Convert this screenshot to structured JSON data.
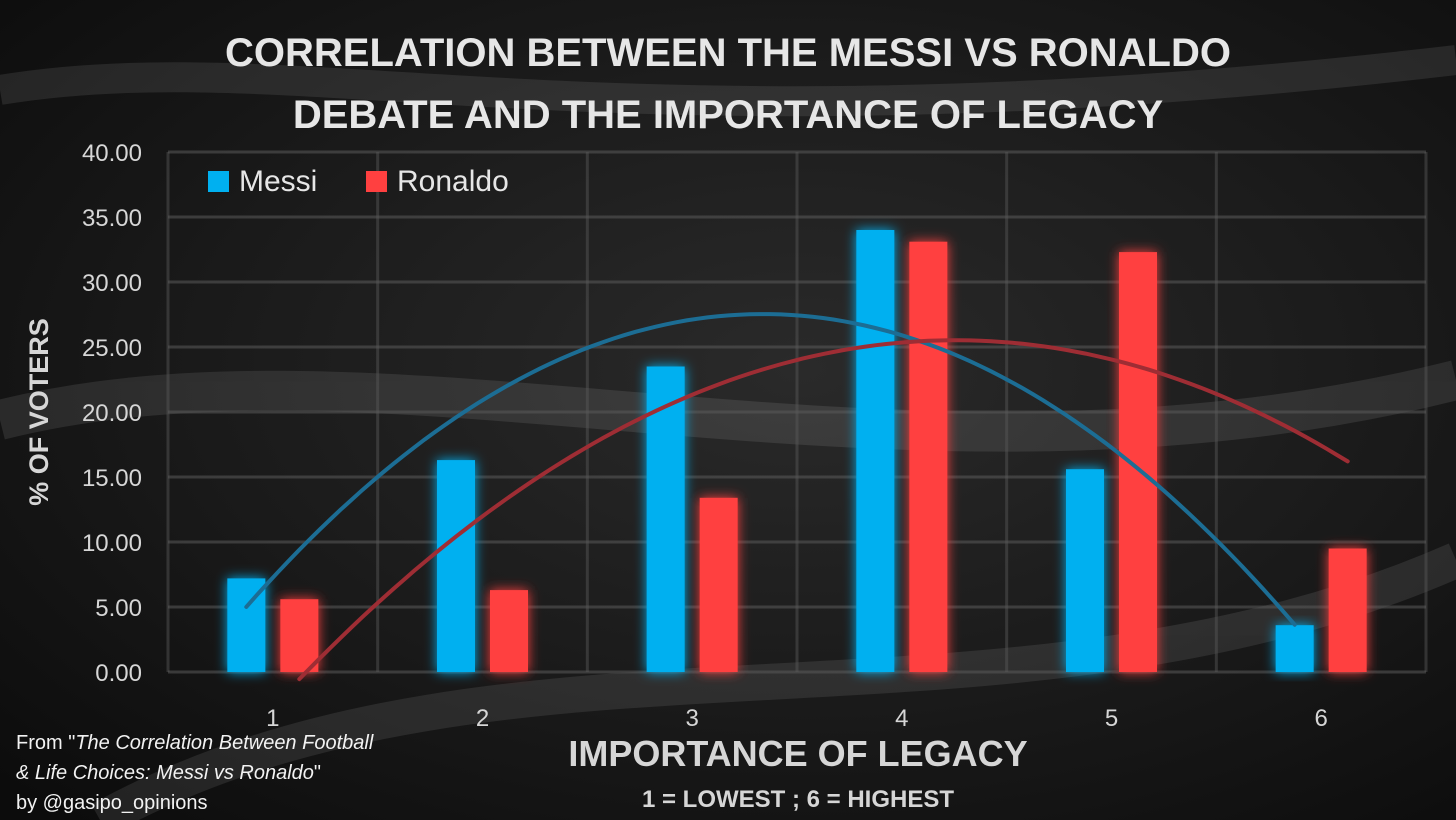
{
  "chart_data": {
    "type": "bar",
    "title_lines": [
      "CORRELATION BETWEEN THE MESSI VS RONALDO",
      "DEBATE AND THE IMPORTANCE OF LEGACY"
    ],
    "xlabel": "IMPORTANCE OF LEGACY",
    "xlabel_sub": "1 = LOWEST ; 6 = HIGHEST",
    "ylabel": "% OF VOTERS",
    "categories": [
      "1",
      "2",
      "3",
      "4",
      "5",
      "6"
    ],
    "ylim": [
      0,
      40
    ],
    "yticks": [
      "0.00",
      "5.00",
      "10.00",
      "15.00",
      "20.00",
      "25.00",
      "30.00",
      "35.00",
      "40.00"
    ],
    "grid": true,
    "legend_position": "top-left",
    "series": [
      {
        "name": "Messi",
        "color": "#00b0f0",
        "values": [
          7.2,
          16.3,
          23.5,
          34.0,
          15.6,
          3.6
        ]
      },
      {
        "name": "Ronaldo",
        "color": "#ff4040",
        "values": [
          5.6,
          6.3,
          13.4,
          33.1,
          32.3,
          9.5
        ]
      }
    ],
    "trendlines": [
      {
        "series": "Messi",
        "type": "polynomial",
        "color": "#1c6d94"
      },
      {
        "series": "Ronaldo",
        "type": "polynomial",
        "color": "#9e2d34"
      }
    ]
  },
  "source": {
    "line1_prefix": "From \"",
    "line1_title": "The Correlation Between Football",
    "line2_title": "& Life Choices: Messi vs Ronaldo",
    "line2_suffix": "\"",
    "line3": "by @gasipo_opinions"
  }
}
